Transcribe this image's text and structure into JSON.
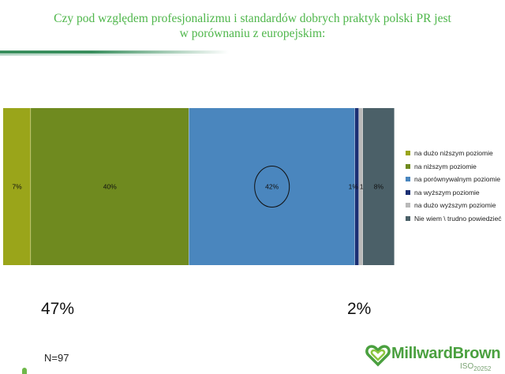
{
  "header": {
    "title_line1": "Czy pod względem profesjonalizmu i standardów dobrych praktyk polski PR jest",
    "title_line2": "w porównaniu z europejskim:"
  },
  "chart_data": {
    "type": "bar",
    "orientation": "horizontal-stacked-100",
    "categories": [
      ""
    ],
    "series": [
      {
        "name": "na dużo niższym poziomie",
        "values": [
          7
        ],
        "label": "7%",
        "color": "#9aa51a"
      },
      {
        "name": "na niższym poziomie",
        "values": [
          40
        ],
        "label": "40%",
        "color": "#6f8a1f"
      },
      {
        "name": "na porównywalnym poziomie",
        "values": [
          42
        ],
        "label": "42%",
        "color": "#4a86be"
      },
      {
        "name": "na wyższym poziomie",
        "values": [
          1
        ],
        "label": "1%",
        "color": "#1b2f73"
      },
      {
        "name": "na dużo wyższym poziomie",
        "values": [
          1
        ],
        "label": "1%",
        "color": "#b9b9b9"
      },
      {
        "name": "Nie wiem \\ trudno powiedzieć",
        "values": [
          8
        ],
        "label": "8%",
        "color": "#4b6068"
      }
    ],
    "highlighted_series": "na porównywalnym poziomie",
    "legend_position": "right",
    "grid": false
  },
  "summary": {
    "lower_total": "47%",
    "higher_total": "2%"
  },
  "footer": {
    "sample": "N=97"
  },
  "logo": {
    "name": "MillwardBrown",
    "iso_prefix": "ISO",
    "iso_number": "20252"
  }
}
